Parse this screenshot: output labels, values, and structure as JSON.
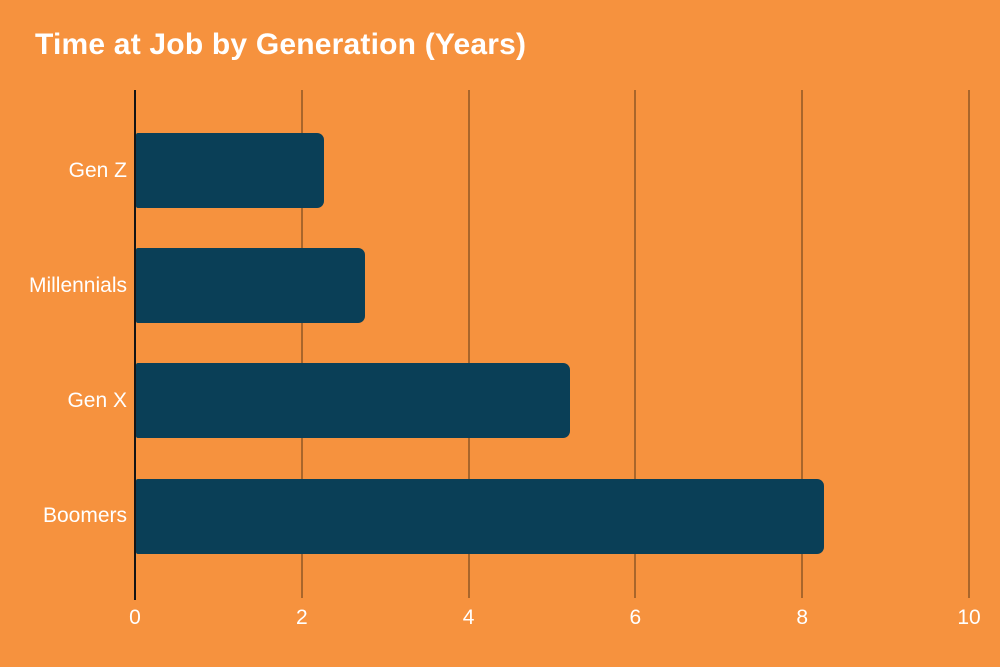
{
  "page": {
    "title": "Time at Job by Generation (Years)"
  },
  "colors": {
    "background": "#F6923E",
    "bar": "#0A3F57",
    "gridline": "#A9662B",
    "axis_line": "#141414",
    "text": "#FFFFFF"
  },
  "chart_data": {
    "type": "bar",
    "orientation": "horizontal",
    "title": "Time at Job by Generation (Years)",
    "categories": [
      "Gen Z",
      "Millennials",
      "Gen X",
      "Boomers"
    ],
    "values": [
      2.25,
      2.75,
      5.2,
      8.25
    ],
    "xlabel": "",
    "ylabel": "",
    "xlim": [
      0,
      10
    ],
    "xticks": [
      0,
      2,
      4,
      6,
      8,
      10
    ],
    "grid": true,
    "legend": false,
    "bar_order_top_to_bottom": [
      "Gen Z",
      "Millennials",
      "Gen X",
      "Boomers"
    ]
  }
}
